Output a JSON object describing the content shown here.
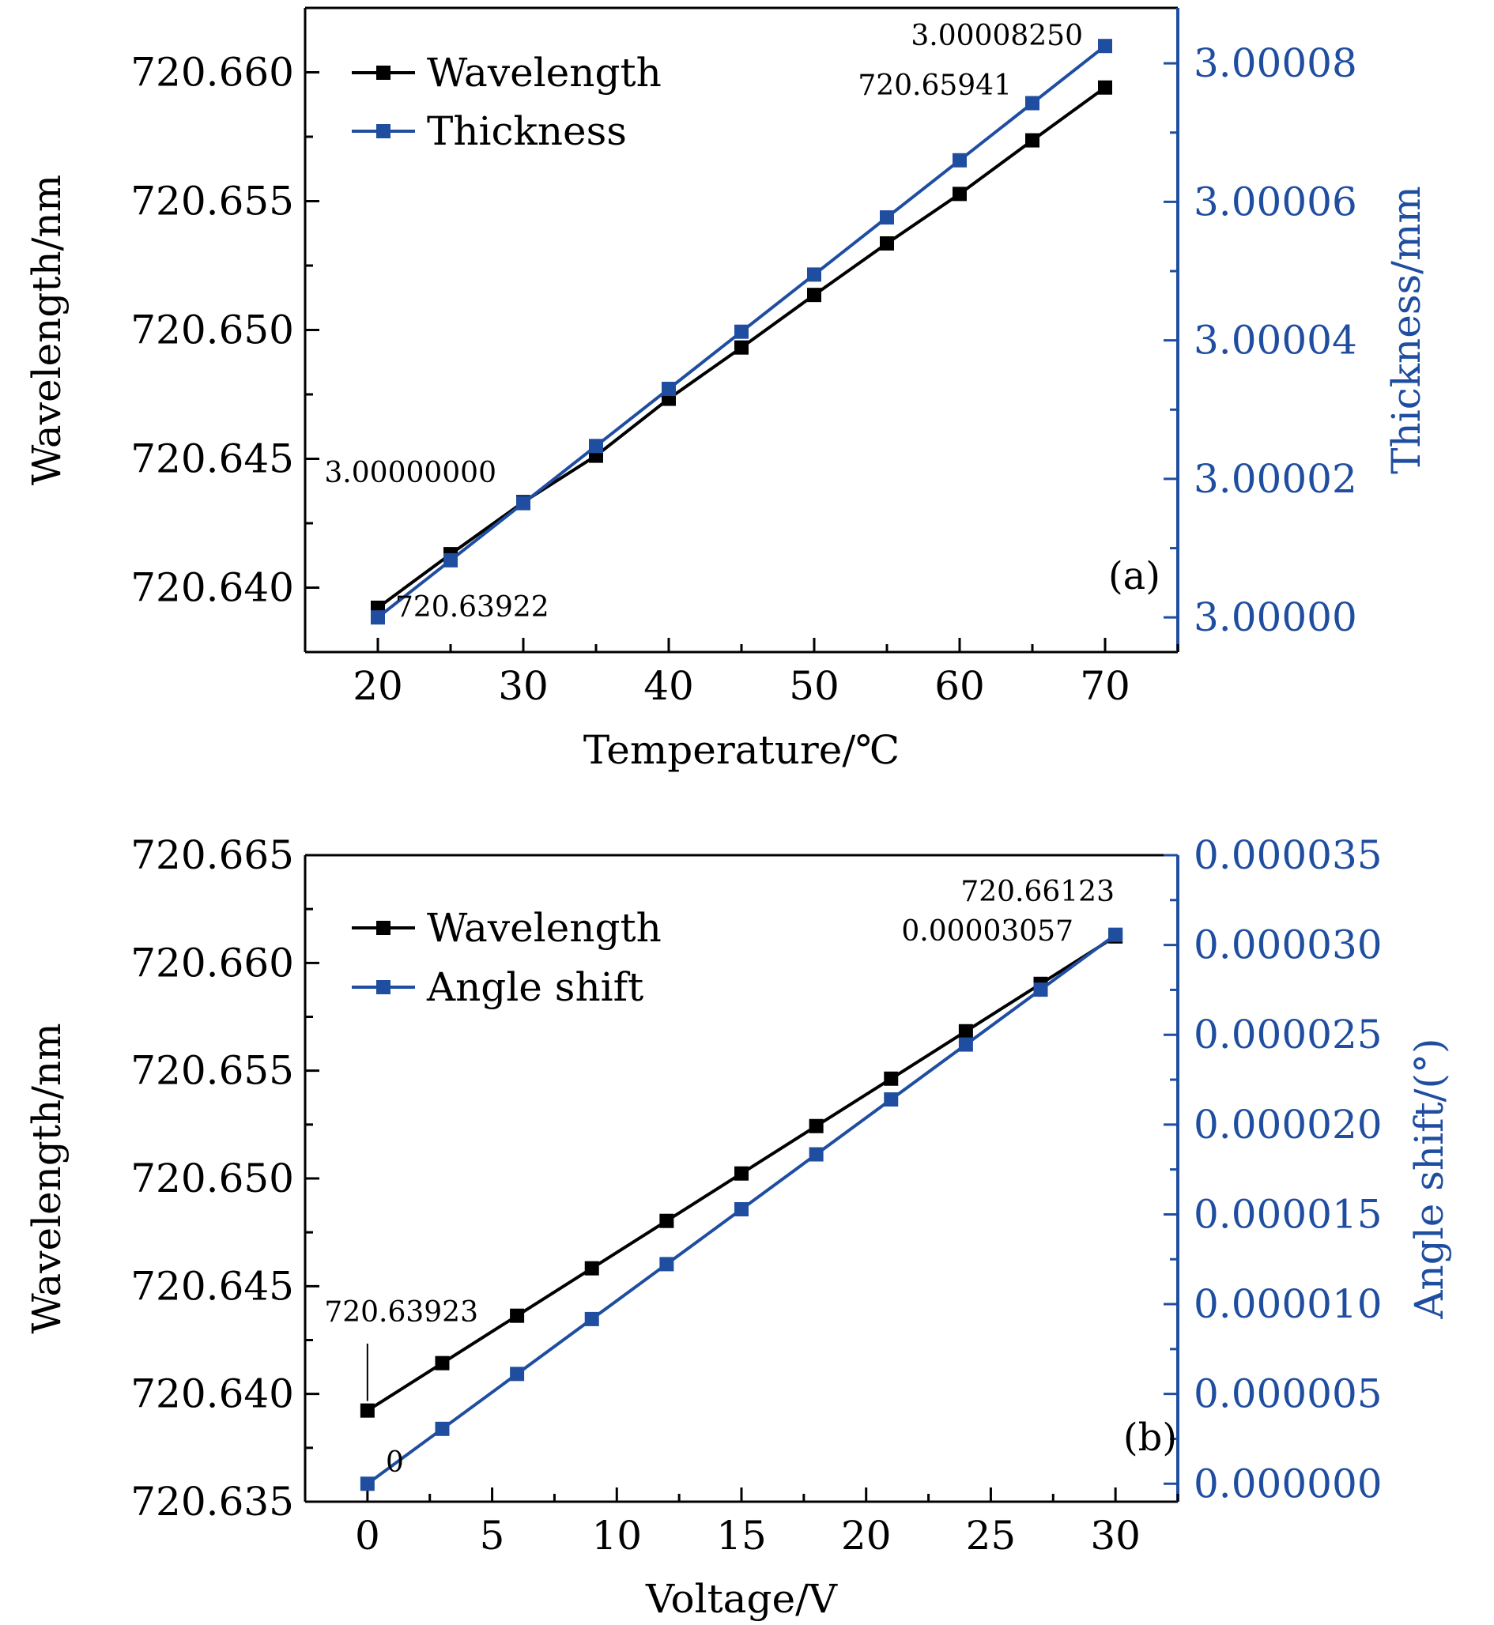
{
  "chart_data": [
    {
      "type": "line",
      "panel_label": "(a)",
      "xlabel": "Temperature/℃",
      "ylabel": "Wavelength/nm",
      "y2label": "Thickness/mm",
      "xlim": [
        15,
        75
      ],
      "ylim": [
        720.6375,
        720.6625
      ],
      "y2lim": [
        2.999995,
        3.000088
      ],
      "xticks": [
        20,
        30,
        40,
        50,
        60,
        70
      ],
      "xtick_labels": [
        "20",
        "30",
        "40",
        "50",
        "60",
        "70"
      ],
      "yticks": [
        720.64,
        720.645,
        720.65,
        720.655,
        720.66
      ],
      "ytick_labels": [
        "720.640",
        "720.645",
        "720.650",
        "720.655",
        "720.660"
      ],
      "y2ticks": [
        3.0,
        3.00002,
        3.00004,
        3.00006,
        3.00008
      ],
      "y2tick_labels": [
        "3.00000",
        "3.00002",
        "3.00004",
        "3.00006",
        "3.00008"
      ],
      "grid": false,
      "legend_position": "top-left",
      "x": [
        20,
        25,
        30,
        35,
        40,
        45,
        50,
        55,
        60,
        65,
        70
      ],
      "series": [
        {
          "name": "Wavelength",
          "axis": "left",
          "color": "#000000",
          "values": [
            720.63922,
            720.6413,
            720.64332,
            720.64512,
            720.64733,
            720.64932,
            720.65136,
            720.65336,
            720.65528,
            720.65736,
            720.65941
          ]
        },
        {
          "name": "Thickness",
          "axis": "right",
          "color": "#1f4ea0",
          "values": [
            3.0,
            3.00000825,
            3.0000165,
            3.00002475,
            3.000033,
            3.00004125,
            3.0000495,
            3.00005775,
            3.000066,
            3.00007425,
            3.0000825
          ]
        }
      ],
      "annotations": [
        {
          "text": "3.00008250"
        },
        {
          "text": "720.65941"
        },
        {
          "text": "3.00000000"
        },
        {
          "text": "720.63922"
        }
      ]
    },
    {
      "type": "line",
      "panel_label": "(b)",
      "xlabel": "Voltage/V",
      "ylabel": "Wavelength/nm",
      "y2label": "Angle shift/(°)",
      "xlim": [
        -2.5,
        32.5
      ],
      "ylim": [
        720.635,
        720.665
      ],
      "y2lim": [
        -1e-06,
        3.5e-05
      ],
      "xticks": [
        0,
        5,
        10,
        15,
        20,
        25,
        30
      ],
      "xtick_labels": [
        "0",
        "5",
        "10",
        "15",
        "20",
        "25",
        "30"
      ],
      "yticks": [
        720.635,
        720.64,
        720.645,
        720.65,
        720.655,
        720.66,
        720.665
      ],
      "ytick_labels": [
        "720.635",
        "720.640",
        "720.645",
        "720.650",
        "720.655",
        "720.660",
        "720.665"
      ],
      "y2ticks": [
        0.0,
        5e-06,
        1e-05,
        1.5e-05,
        2e-05,
        2.5e-05,
        3e-05,
        3.5e-05
      ],
      "y2tick_labels": [
        "0.000000",
        "0.000005",
        "0.000010",
        "0.000015",
        "0.000020",
        "0.000025",
        "0.000030",
        "0.000035"
      ],
      "grid": false,
      "legend_position": "top-left",
      "x": [
        0,
        3,
        6,
        9,
        12,
        15,
        18,
        21,
        24,
        27,
        30
      ],
      "series": [
        {
          "name": "Wavelength",
          "axis": "left",
          "color": "#000000",
          "values": [
            720.63923,
            720.64143,
            720.64363,
            720.64583,
            720.64803,
            720.65023,
            720.65243,
            720.65463,
            720.65683,
            720.65903,
            720.66123
          ]
        },
        {
          "name": "Angle shift",
          "axis": "right",
          "color": "#1f4ea0",
          "values": [
            0.0,
            3.057e-06,
            6.114e-06,
            9.171e-06,
            1.2228e-05,
            1.5285e-05,
            1.8342e-05,
            2.1399e-05,
            2.4456e-05,
            2.7513e-05,
            3.057e-05
          ]
        }
      ],
      "annotations": [
        {
          "text": "720.66123"
        },
        {
          "text": "0.00003057"
        },
        {
          "text": "720.63923"
        },
        {
          "text": "0"
        }
      ]
    }
  ]
}
